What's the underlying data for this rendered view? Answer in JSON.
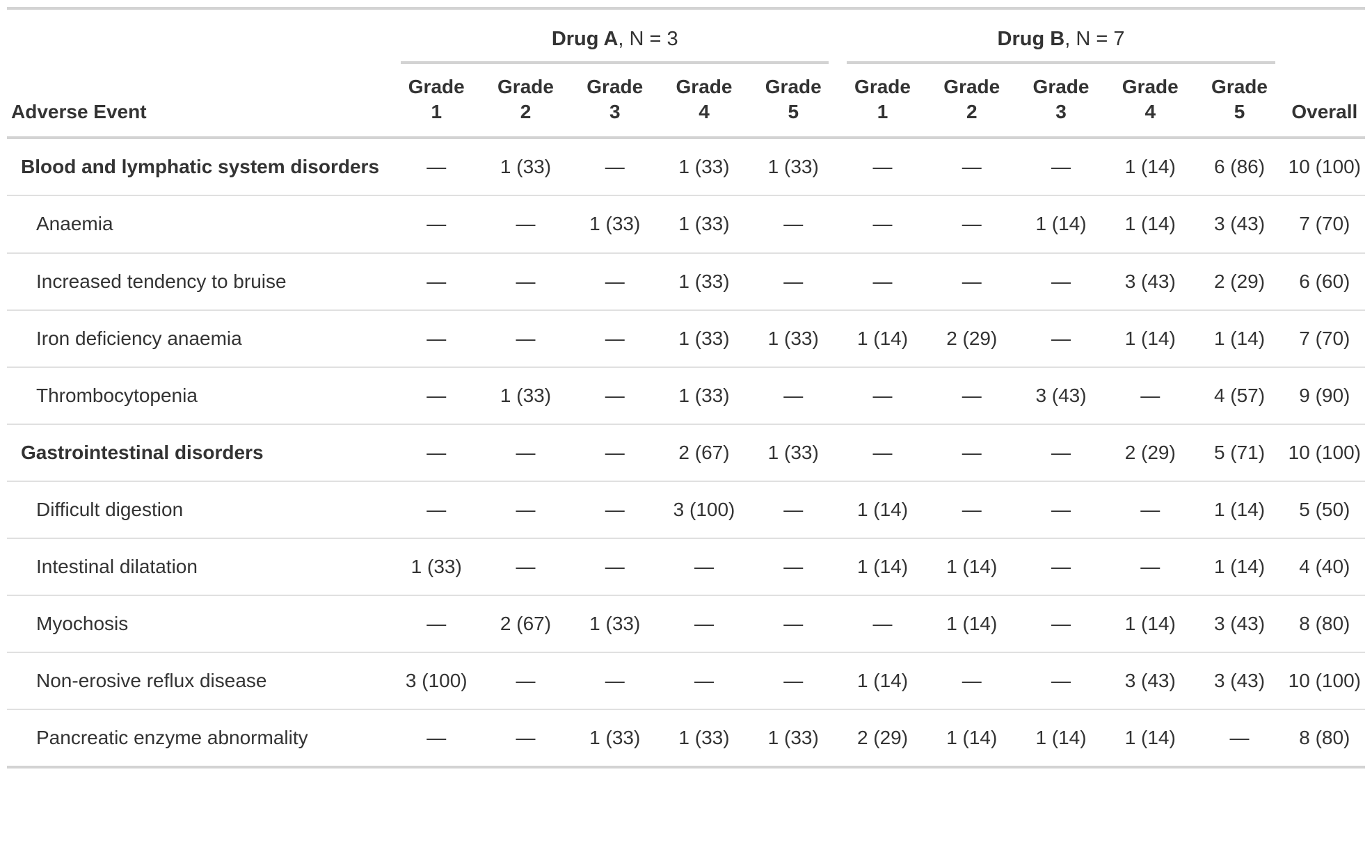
{
  "colors": {
    "text": "#333333",
    "heavy_rule": "#d3d3d3",
    "light_rule": "#e0e0e0",
    "background": "#ffffff"
  },
  "chart_data": {
    "type": "table",
    "stub_header": "Adverse Event",
    "overall_header": "Overall",
    "empty_cell": "—",
    "spanners": [
      {
        "name": "Drug A",
        "n_label": ", N = 3",
        "span": 5
      },
      {
        "name": "Drug B",
        "n_label": ", N = 7",
        "span": 5
      }
    ],
    "grade_columns": [
      {
        "line1": "Grade",
        "line2": "1"
      },
      {
        "line1": "Grade",
        "line2": "2"
      },
      {
        "line1": "Grade",
        "line2": "3"
      },
      {
        "line1": "Grade",
        "line2": "4"
      },
      {
        "line1": "Grade",
        "line2": "5"
      }
    ],
    "rows": [
      {
        "label": "Blood and lymphatic system disorders",
        "group": true,
        "cells": [
          "—",
          "1 (33)",
          "—",
          "1 (33)",
          "1 (33)",
          "—",
          "—",
          "—",
          "1 (14)",
          "6 (86)",
          "10 (100)"
        ]
      },
      {
        "label": "Anaemia",
        "group": false,
        "cells": [
          "—",
          "—",
          "1 (33)",
          "1 (33)",
          "—",
          "—",
          "—",
          "1 (14)",
          "1 (14)",
          "3 (43)",
          "7 (70)"
        ]
      },
      {
        "label": "Increased tendency to bruise",
        "group": false,
        "cells": [
          "—",
          "—",
          "—",
          "1 (33)",
          "—",
          "—",
          "—",
          "—",
          "3 (43)",
          "2 (29)",
          "6 (60)"
        ]
      },
      {
        "label": "Iron deficiency anaemia",
        "group": false,
        "cells": [
          "—",
          "—",
          "—",
          "1 (33)",
          "1 (33)",
          "1 (14)",
          "2 (29)",
          "—",
          "1 (14)",
          "1 (14)",
          "7 (70)"
        ]
      },
      {
        "label": "Thrombocytopenia",
        "group": false,
        "cells": [
          "—",
          "1 (33)",
          "—",
          "1 (33)",
          "—",
          "—",
          "—",
          "3 (43)",
          "—",
          "4 (57)",
          "9 (90)"
        ]
      },
      {
        "label": "Gastrointestinal disorders",
        "group": true,
        "cells": [
          "—",
          "—",
          "—",
          "2 (67)",
          "1 (33)",
          "—",
          "—",
          "—",
          "2 (29)",
          "5 (71)",
          "10 (100)"
        ]
      },
      {
        "label": "Difficult digestion",
        "group": false,
        "cells": [
          "—",
          "—",
          "—",
          "3 (100)",
          "—",
          "1 (14)",
          "—",
          "—",
          "—",
          "1 (14)",
          "5 (50)"
        ]
      },
      {
        "label": "Intestinal dilatation",
        "group": false,
        "cells": [
          "1 (33)",
          "—",
          "—",
          "—",
          "—",
          "1 (14)",
          "1 (14)",
          "—",
          "—",
          "1 (14)",
          "4 (40)"
        ]
      },
      {
        "label": "Myochosis",
        "group": false,
        "cells": [
          "—",
          "2 (67)",
          "1 (33)",
          "—",
          "—",
          "—",
          "1 (14)",
          "—",
          "1 (14)",
          "3 (43)",
          "8 (80)"
        ]
      },
      {
        "label": "Non-erosive reflux disease",
        "group": false,
        "cells": [
          "3 (100)",
          "—",
          "—",
          "—",
          "—",
          "1 (14)",
          "—",
          "—",
          "3 (43)",
          "3 (43)",
          "10 (100)"
        ]
      },
      {
        "label": "Pancreatic enzyme abnormality",
        "group": false,
        "cells": [
          "—",
          "—",
          "1 (33)",
          "1 (33)",
          "1 (33)",
          "2 (29)",
          "1 (14)",
          "1 (14)",
          "1 (14)",
          "—",
          "8 (80)"
        ]
      }
    ]
  }
}
